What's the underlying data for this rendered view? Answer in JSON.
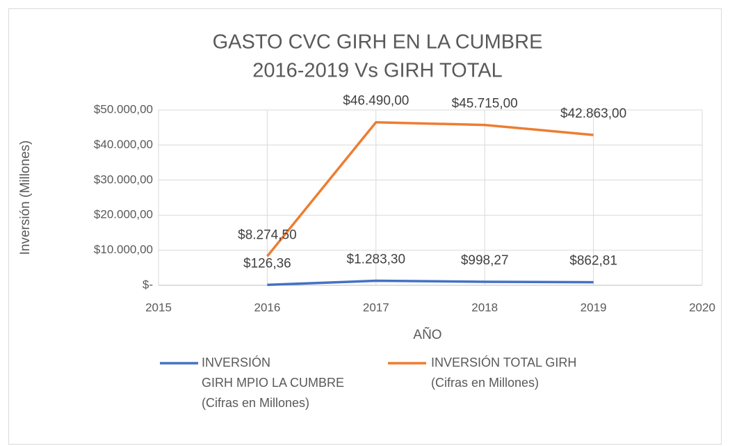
{
  "chart_data": {
    "type": "line",
    "title": [
      "GASTO CVC GIRH EN LA CUMBRE",
      "2016-2019 Vs GIRH TOTAL"
    ],
    "x_label": "AÑO",
    "y_label": "Inversión (Millones)",
    "x": [
      2016,
      2017,
      2018,
      2019
    ],
    "xlim": [
      2015,
      2020
    ],
    "xticks": [
      2015,
      2016,
      2017,
      2018,
      2019,
      2020
    ],
    "ylim": [
      0,
      50000
    ],
    "yticks": [
      {
        "value": 0,
        "label": "$-"
      },
      {
        "value": 10000,
        "label": "$10.000,00"
      },
      {
        "value": 20000,
        "label": "$20.000,00"
      },
      {
        "value": 30000,
        "label": "$30.000,00"
      },
      {
        "value": 40000,
        "label": "$40.000,00"
      },
      {
        "value": 50000,
        "label": "$50.000,00"
      }
    ],
    "grid": true,
    "legend": "bottom",
    "series": [
      {
        "name": "INVERSIÓN\nGIRH MPIO LA CUMBRE\n(Cifras en Millones)",
        "color": "#4472c4",
        "values": [
          126.36,
          1283.3,
          998.27,
          862.81
        ],
        "value_labels": [
          "$126,36",
          "$1.283,30",
          "$998,27",
          "$862,81"
        ]
      },
      {
        "name": "INVERSIÓN TOTAL GIRH\n(Cifras en Millones)",
        "color": "#ed7d31",
        "values": [
          8274.5,
          46490.0,
          45715.0,
          42863.0
        ],
        "value_labels": [
          "$8.274,50",
          "$46.490,00",
          "$45.715,00",
          "$42.863,00"
        ]
      }
    ]
  }
}
